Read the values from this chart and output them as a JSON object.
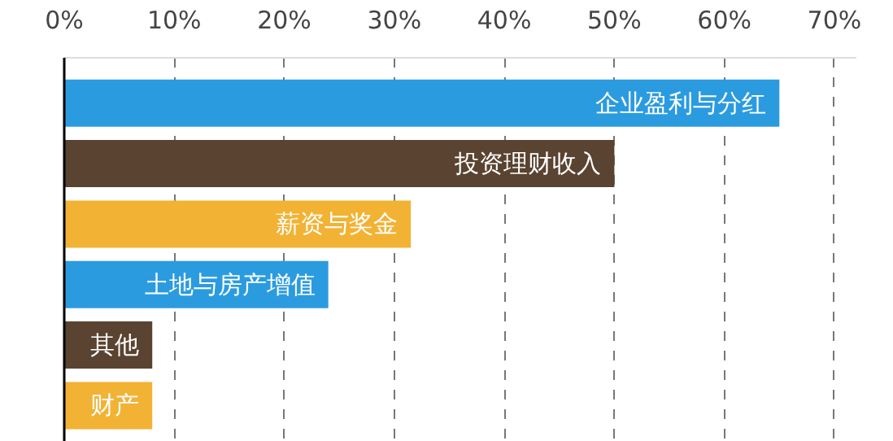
{
  "chart_data": {
    "type": "bar",
    "orientation": "horizontal",
    "categories": [
      "企业盈利与分红",
      "投资理财收入",
      "薪资与奖金",
      "土地与房产增值",
      "其他",
      "财产"
    ],
    "values": [
      65,
      50,
      31.5,
      24,
      8,
      8
    ],
    "colors": [
      "#2b9be0",
      "#5a4330",
      "#f2b233",
      "#2b9be0",
      "#5a4330",
      "#f2b233"
    ],
    "xlim": [
      0,
      72
    ],
    "xticks": [
      {
        "value": 0,
        "label": "0%"
      },
      {
        "value": 10,
        "label": "10%"
      },
      {
        "value": 20,
        "label": "20%"
      },
      {
        "value": 30,
        "label": "30%"
      },
      {
        "value": 40,
        "label": "40%"
      },
      {
        "value": 50,
        "label": "50%"
      },
      {
        "value": 60,
        "label": "60%"
      },
      {
        "value": 70,
        "label": "70%"
      }
    ],
    "grid": "x",
    "tick_labels": "x"
  }
}
